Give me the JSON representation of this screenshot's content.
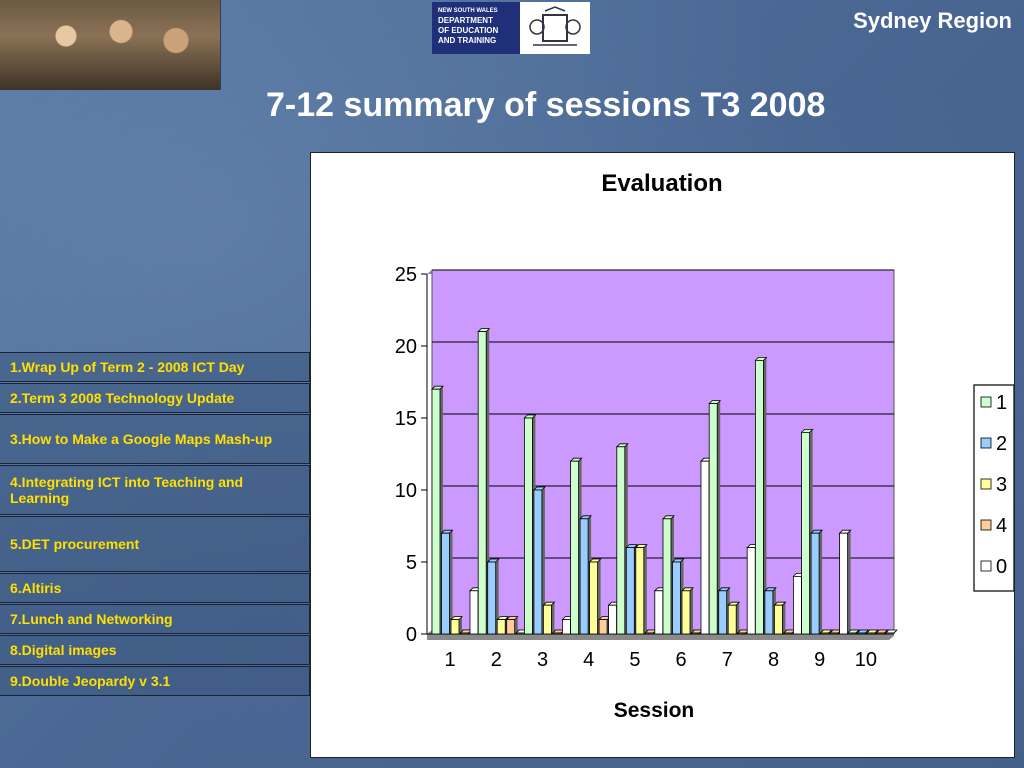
{
  "header": {
    "region": "Sydney Region",
    "title": "7-12 summary of sessions T3 2008",
    "logo_lines": [
      "NEW SOUTH WALES",
      "DEPARTMENT",
      "OF EDUCATION",
      "AND TRAINING"
    ]
  },
  "agenda": [
    "1.Wrap Up of Term 2 - 2008 ICT Day",
    "2.Term 3 2008 Technology Update",
    "3.How to Make a Google Maps Mash-up",
    "4.Integrating ICT into Teaching and Learning",
    "5.DET procurement",
    "6.Altiris",
    "7.Lunch and Networking",
    "8.Digital images",
    "9.Double Jeopardy v 3.1"
  ],
  "chart_data": {
    "type": "bar",
    "title": "Evaluation",
    "xlabel": "Session",
    "ylabel": "",
    "categories": [
      "1",
      "2",
      "3",
      "4",
      "5",
      "6",
      "7",
      "8",
      "9",
      "10"
    ],
    "ylim": [
      0,
      25
    ],
    "yticks": [
      0,
      5,
      10,
      15,
      20,
      25
    ],
    "grid": true,
    "legend": "right",
    "plot_background": "#cc99ff",
    "series": [
      {
        "name": "1",
        "color": "#ccffcc",
        "values": [
          17,
          21,
          15,
          12,
          13,
          8,
          16,
          19,
          14,
          0
        ]
      },
      {
        "name": "2",
        "color": "#99ccff",
        "values": [
          7,
          5,
          10,
          8,
          6,
          5,
          3,
          3,
          7,
          0
        ]
      },
      {
        "name": "3",
        "color": "#ffff99",
        "values": [
          1,
          1,
          2,
          5,
          6,
          3,
          2,
          2,
          0,
          0
        ]
      },
      {
        "name": "4",
        "color": "#ffcc99",
        "values": [
          0,
          1,
          0,
          1,
          0,
          0,
          0,
          0,
          0,
          0
        ]
      },
      {
        "name": "0",
        "color": "#ffffff",
        "values": [
          3,
          0,
          1,
          2,
          3,
          12,
          6,
          4,
          7,
          0
        ]
      }
    ]
  }
}
